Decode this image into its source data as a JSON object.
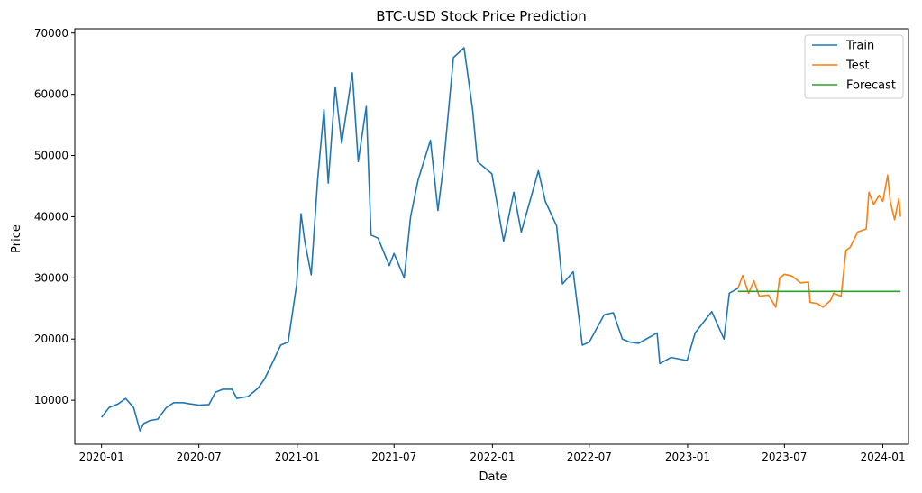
{
  "chart_data": {
    "type": "line",
    "title": "BTC-USD Stock Price Prediction",
    "xlabel": "Date",
    "ylabel": "Price",
    "xlim": [
      "2019-11-12",
      "2024-02-18"
    ],
    "ylim": [
      2800,
      70700
    ],
    "x_ticks": [
      "2020-01-01",
      "2020-07-01",
      "2021-01-01",
      "2021-07-01",
      "2022-01-01",
      "2022-07-01",
      "2023-01-01",
      "2023-07-01",
      "2024-01-01"
    ],
    "x_tick_labels": [
      "2020-01",
      "2020-07",
      "2021-01",
      "2021-07",
      "2022-01",
      "2022-07",
      "2023-01",
      "2023-07",
      "2024-01"
    ],
    "y_ticks": [
      10000,
      20000,
      30000,
      40000,
      50000,
      60000,
      70000
    ],
    "y_tick_labels": [
      "10000",
      "20000",
      "30000",
      "40000",
      "50000",
      "60000",
      "70000"
    ],
    "grid": false,
    "legend_position": "top-right",
    "series": [
      {
        "name": "Train",
        "color": "#1f77b4",
        "points": [
          [
            "2020-01-01",
            7200
          ],
          [
            "2020-01-15",
            8800
          ],
          [
            "2020-02-01",
            9400
          ],
          [
            "2020-02-15",
            10300
          ],
          [
            "2020-03-01",
            8800
          ],
          [
            "2020-03-13",
            5000
          ],
          [
            "2020-03-20",
            6200
          ],
          [
            "2020-04-01",
            6700
          ],
          [
            "2020-04-15",
            6900
          ],
          [
            "2020-05-01",
            8800
          ],
          [
            "2020-05-15",
            9600
          ],
          [
            "2020-06-01",
            9600
          ],
          [
            "2020-06-15",
            9400
          ],
          [
            "2020-07-01",
            9200
          ],
          [
            "2020-07-20",
            9300
          ],
          [
            "2020-08-01",
            11300
          ],
          [
            "2020-08-15",
            11800
          ],
          [
            "2020-09-01",
            11800
          ],
          [
            "2020-09-10",
            10300
          ],
          [
            "2020-10-01",
            10600
          ],
          [
            "2020-10-20",
            12000
          ],
          [
            "2020-11-01",
            13500
          ],
          [
            "2020-11-15",
            16000
          ],
          [
            "2020-12-01",
            19000
          ],
          [
            "2020-12-15",
            19500
          ],
          [
            "2020-12-31",
            29000
          ],
          [
            "2021-01-08",
            40500
          ],
          [
            "2021-01-15",
            36000
          ],
          [
            "2021-01-27",
            30500
          ],
          [
            "2021-02-08",
            46000
          ],
          [
            "2021-02-20",
            57500
          ],
          [
            "2021-02-28",
            45500
          ],
          [
            "2021-03-13",
            61200
          ],
          [
            "2021-03-25",
            52000
          ],
          [
            "2021-04-14",
            63500
          ],
          [
            "2021-04-25",
            49000
          ],
          [
            "2021-05-10",
            58000
          ],
          [
            "2021-05-19",
            37000
          ],
          [
            "2021-06-01",
            36500
          ],
          [
            "2021-06-22",
            32000
          ],
          [
            "2021-07-01",
            34000
          ],
          [
            "2021-07-20",
            30000
          ],
          [
            "2021-08-01",
            40000
          ],
          [
            "2021-08-15",
            46000
          ],
          [
            "2021-09-07",
            52500
          ],
          [
            "2021-09-21",
            41000
          ],
          [
            "2021-10-01",
            48000
          ],
          [
            "2021-10-20",
            66000
          ],
          [
            "2021-11-09",
            67600
          ],
          [
            "2021-11-25",
            57500
          ],
          [
            "2021-12-04",
            49000
          ],
          [
            "2021-12-31",
            47000
          ],
          [
            "2022-01-10",
            42000
          ],
          [
            "2022-01-22",
            36000
          ],
          [
            "2022-02-10",
            44000
          ],
          [
            "2022-02-24",
            37500
          ],
          [
            "2022-03-28",
            47500
          ],
          [
            "2022-04-10",
            42500
          ],
          [
            "2022-05-01",
            38500
          ],
          [
            "2022-05-12",
            29000
          ],
          [
            "2022-06-01",
            31000
          ],
          [
            "2022-06-18",
            19000
          ],
          [
            "2022-07-01",
            19500
          ],
          [
            "2022-07-29",
            24000
          ],
          [
            "2022-08-15",
            24300
          ],
          [
            "2022-09-01",
            20000
          ],
          [
            "2022-09-15",
            19500
          ],
          [
            "2022-10-01",
            19300
          ],
          [
            "2022-11-05",
            21000
          ],
          [
            "2022-11-10",
            16000
          ],
          [
            "2022-12-01",
            17000
          ],
          [
            "2022-12-31",
            16500
          ],
          [
            "2023-01-15",
            21000
          ],
          [
            "2023-02-15",
            24500
          ],
          [
            "2023-03-10",
            20000
          ],
          [
            "2023-03-20",
            27500
          ],
          [
            "2023-04-05",
            28300
          ]
        ]
      },
      {
        "name": "Test",
        "color": "#ff7f0e",
        "points": [
          [
            "2023-04-05",
            28300
          ],
          [
            "2023-04-14",
            30400
          ],
          [
            "2023-04-25",
            27500
          ],
          [
            "2023-05-05",
            29500
          ],
          [
            "2023-05-15",
            27000
          ],
          [
            "2023-06-01",
            27200
          ],
          [
            "2023-06-15",
            25200
          ],
          [
            "2023-06-22",
            30000
          ],
          [
            "2023-07-01",
            30600
          ],
          [
            "2023-07-15",
            30300
          ],
          [
            "2023-07-31",
            29200
          ],
          [
            "2023-08-15",
            29300
          ],
          [
            "2023-08-18",
            26000
          ],
          [
            "2023-09-01",
            25800
          ],
          [
            "2023-09-11",
            25200
          ],
          [
            "2023-09-25",
            26300
          ],
          [
            "2023-10-01",
            27500
          ],
          [
            "2023-10-15",
            27000
          ],
          [
            "2023-10-24",
            34500
          ],
          [
            "2023-11-01",
            35000
          ],
          [
            "2023-11-15",
            37500
          ],
          [
            "2023-12-01",
            38000
          ],
          [
            "2023-12-06",
            44000
          ],
          [
            "2023-12-15",
            42000
          ],
          [
            "2023-12-25",
            43500
          ],
          [
            "2024-01-01",
            42500
          ],
          [
            "2024-01-10",
            46800
          ],
          [
            "2024-01-15",
            42500
          ],
          [
            "2024-01-23",
            39500
          ],
          [
            "2024-01-31",
            43000
          ],
          [
            "2024-02-03",
            40000
          ]
        ]
      },
      {
        "name": "Forecast",
        "color": "#2ca02c",
        "points": [
          [
            "2023-04-05",
            27800
          ],
          [
            "2024-02-03",
            27800
          ]
        ]
      }
    ]
  }
}
